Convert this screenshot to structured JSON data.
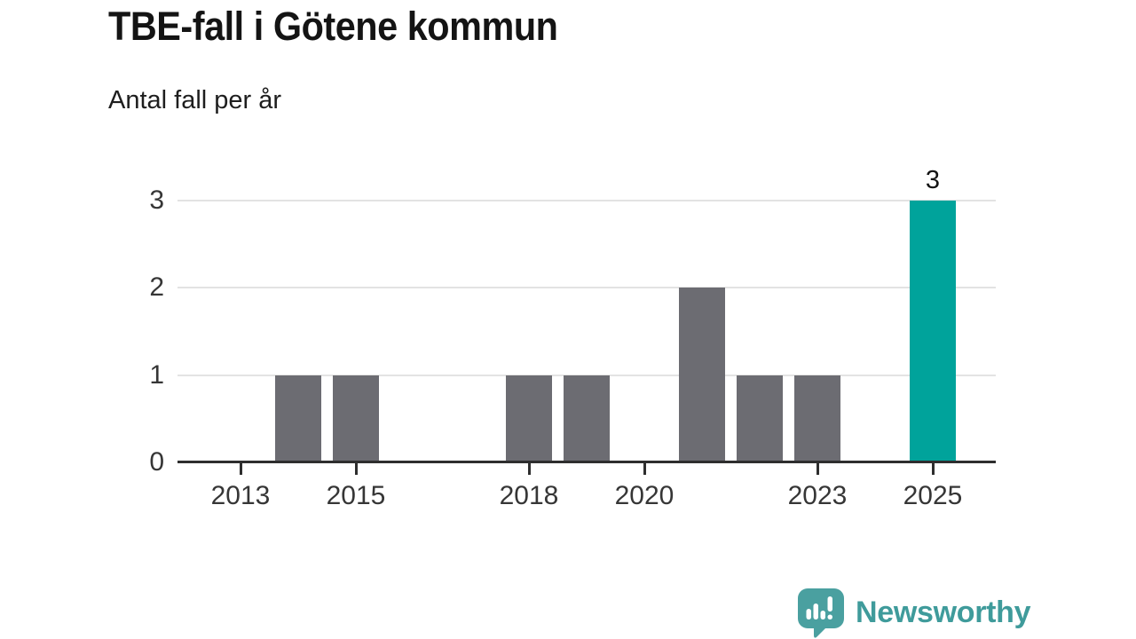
{
  "header": {
    "title": "TBE-fall i Götene kommun",
    "subtitle": "Antal fall per år"
  },
  "chart_data": {
    "type": "bar",
    "title": "TBE-fall i Götene kommun",
    "subtitle": "Antal fall per år",
    "categories": [
      "2013",
      "2014",
      "2015",
      "2016",
      "2017",
      "2018",
      "2019",
      "2020",
      "2021",
      "2022",
      "2023",
      "2024",
      "2025"
    ],
    "values": [
      0,
      1,
      1,
      0,
      0,
      1,
      1,
      0,
      2,
      1,
      1,
      0,
      3
    ],
    "xlabel": "",
    "ylabel": "",
    "ylim": [
      0,
      3
    ],
    "yticks": [
      0,
      1,
      2,
      3
    ],
    "xtick_labels": [
      "2013",
      "2015",
      "2018",
      "2020",
      "2023",
      "2025"
    ],
    "grid": "horizontal",
    "legend": "none",
    "bar_color": "#6c6c72",
    "highlight_category": "2025",
    "highlight_color": "#00a39b",
    "value_labels": [
      {
        "category": "2025",
        "label": "3"
      }
    ],
    "axis_color": "#2e2e2e",
    "gridline_color": "#e3e3e3",
    "tick_label_color": "#363636"
  },
  "branding": {
    "logo_text": "Newsworthy",
    "logo_icon": "speech-bubble-bar-chart-icon",
    "bubble_color": "#4aa0a0",
    "text_color": "#3f9b9b"
  }
}
